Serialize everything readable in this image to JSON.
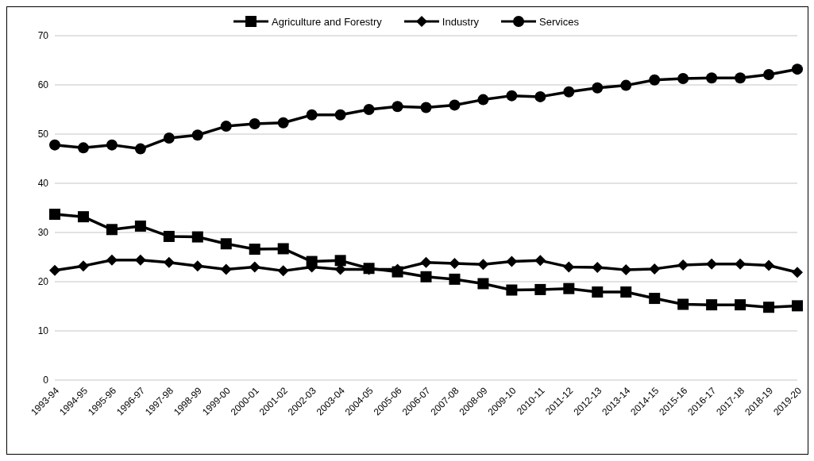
{
  "chart_data": {
    "type": "line",
    "categories": [
      "1993-94",
      "1994-95",
      "1995-96",
      "1996-97",
      "1997-98",
      "1998-99",
      "1999-00",
      "2000-01",
      "2001-02",
      "2002-03",
      "2003-04",
      "2004-05",
      "2005-06",
      "2006-07",
      "2007-08",
      "2008-09",
      "2009-10",
      "2010-11",
      "2011-12",
      "2012-13",
      "2013-14",
      "2014-15",
      "2015-16",
      "2016-17",
      "2017-18",
      "2018-19",
      "2019-20"
    ],
    "series": [
      {
        "name": "Agriculture and Forestry",
        "color": "#000000",
        "marker": "square",
        "values": [
          33.7,
          33.2,
          30.6,
          31.3,
          29.2,
          29.1,
          27.7,
          26.6,
          26.7,
          24.1,
          24.3,
          22.7,
          22.0,
          21.0,
          20.5,
          19.6,
          18.3,
          18.4,
          18.6,
          17.9,
          17.9,
          16.6,
          15.4,
          15.3,
          15.3,
          14.8,
          15.1
        ]
      },
      {
        "name": "Industry",
        "color": "#000000",
        "marker": "diamond",
        "values": [
          22.3,
          23.2,
          24.4,
          24.4,
          23.9,
          23.2,
          22.5,
          23.0,
          22.2,
          23.0,
          22.5,
          22.5,
          22.5,
          23.9,
          23.7,
          23.5,
          24.1,
          24.3,
          23.0,
          22.9,
          22.4,
          22.6,
          23.4,
          23.6,
          23.6,
          23.3,
          21.9
        ]
      },
      {
        "name": "Services",
        "color": "#000000",
        "marker": "circle",
        "values": [
          47.8,
          47.2,
          47.8,
          47.0,
          49.2,
          49.8,
          51.6,
          52.1,
          52.3,
          53.9,
          53.9,
          55.0,
          55.6,
          55.4,
          55.9,
          57.0,
          57.8,
          57.6,
          58.6,
          59.4,
          59.9,
          61.0,
          61.3,
          61.4,
          61.4,
          62.1,
          63.2
        ]
      }
    ],
    "ylim": [
      0,
      70
    ],
    "yticks": [
      0,
      10,
      20,
      30,
      40,
      50,
      60,
      70
    ],
    "grid": "y",
    "legend": "top",
    "line_style": "solid"
  }
}
